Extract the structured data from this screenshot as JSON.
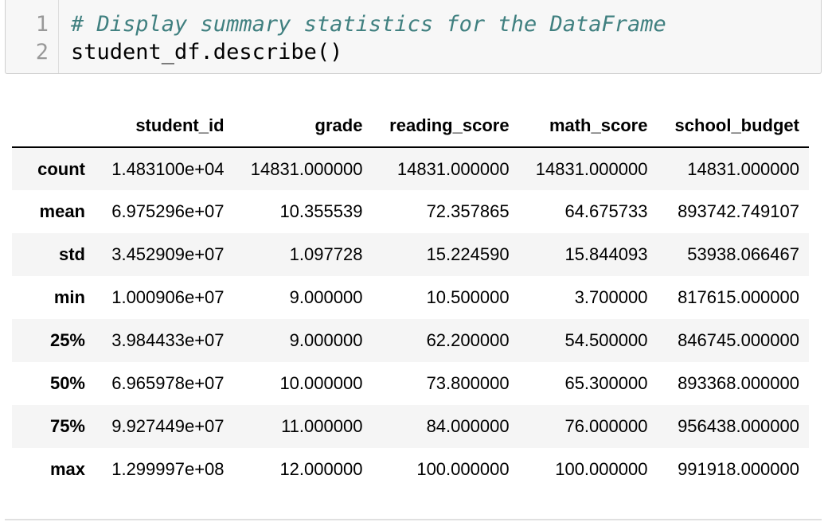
{
  "code_cell": {
    "line_numbers": [
      "1",
      "2"
    ],
    "lines": [
      "# Display summary statistics for the DataFrame",
      "student_df.describe()"
    ]
  },
  "output_table": {
    "index_header": "",
    "columns": [
      "student_id",
      "grade",
      "reading_score",
      "math_score",
      "school_budget"
    ],
    "rows": [
      {
        "label": "count",
        "values": [
          "1.483100e+04",
          "14831.000000",
          "14831.000000",
          "14831.000000",
          "14831.000000"
        ]
      },
      {
        "label": "mean",
        "values": [
          "6.975296e+07",
          "10.355539",
          "72.357865",
          "64.675733",
          "893742.749107"
        ]
      },
      {
        "label": "std",
        "values": [
          "3.452909e+07",
          "1.097728",
          "15.224590",
          "15.844093",
          "53938.066467"
        ]
      },
      {
        "label": "min",
        "values": [
          "1.000906e+07",
          "9.000000",
          "10.500000",
          "3.700000",
          "817615.000000"
        ]
      },
      {
        "label": "25%",
        "values": [
          "3.984433e+07",
          "9.000000",
          "62.200000",
          "54.500000",
          "846745.000000"
        ]
      },
      {
        "label": "50%",
        "values": [
          "6.965978e+07",
          "10.000000",
          "73.800000",
          "65.300000",
          "893368.000000"
        ]
      },
      {
        "label": "75%",
        "values": [
          "9.927449e+07",
          "11.000000",
          "84.000000",
          "76.000000",
          "956438.000000"
        ]
      },
      {
        "label": "max",
        "values": [
          "1.299997e+08",
          "12.000000",
          "100.000000",
          "100.000000",
          "991918.000000"
        ]
      }
    ]
  },
  "colors": {
    "comment": "#408080",
    "code_background": "#f7f7f7",
    "stripe": "#f5f5f5"
  }
}
